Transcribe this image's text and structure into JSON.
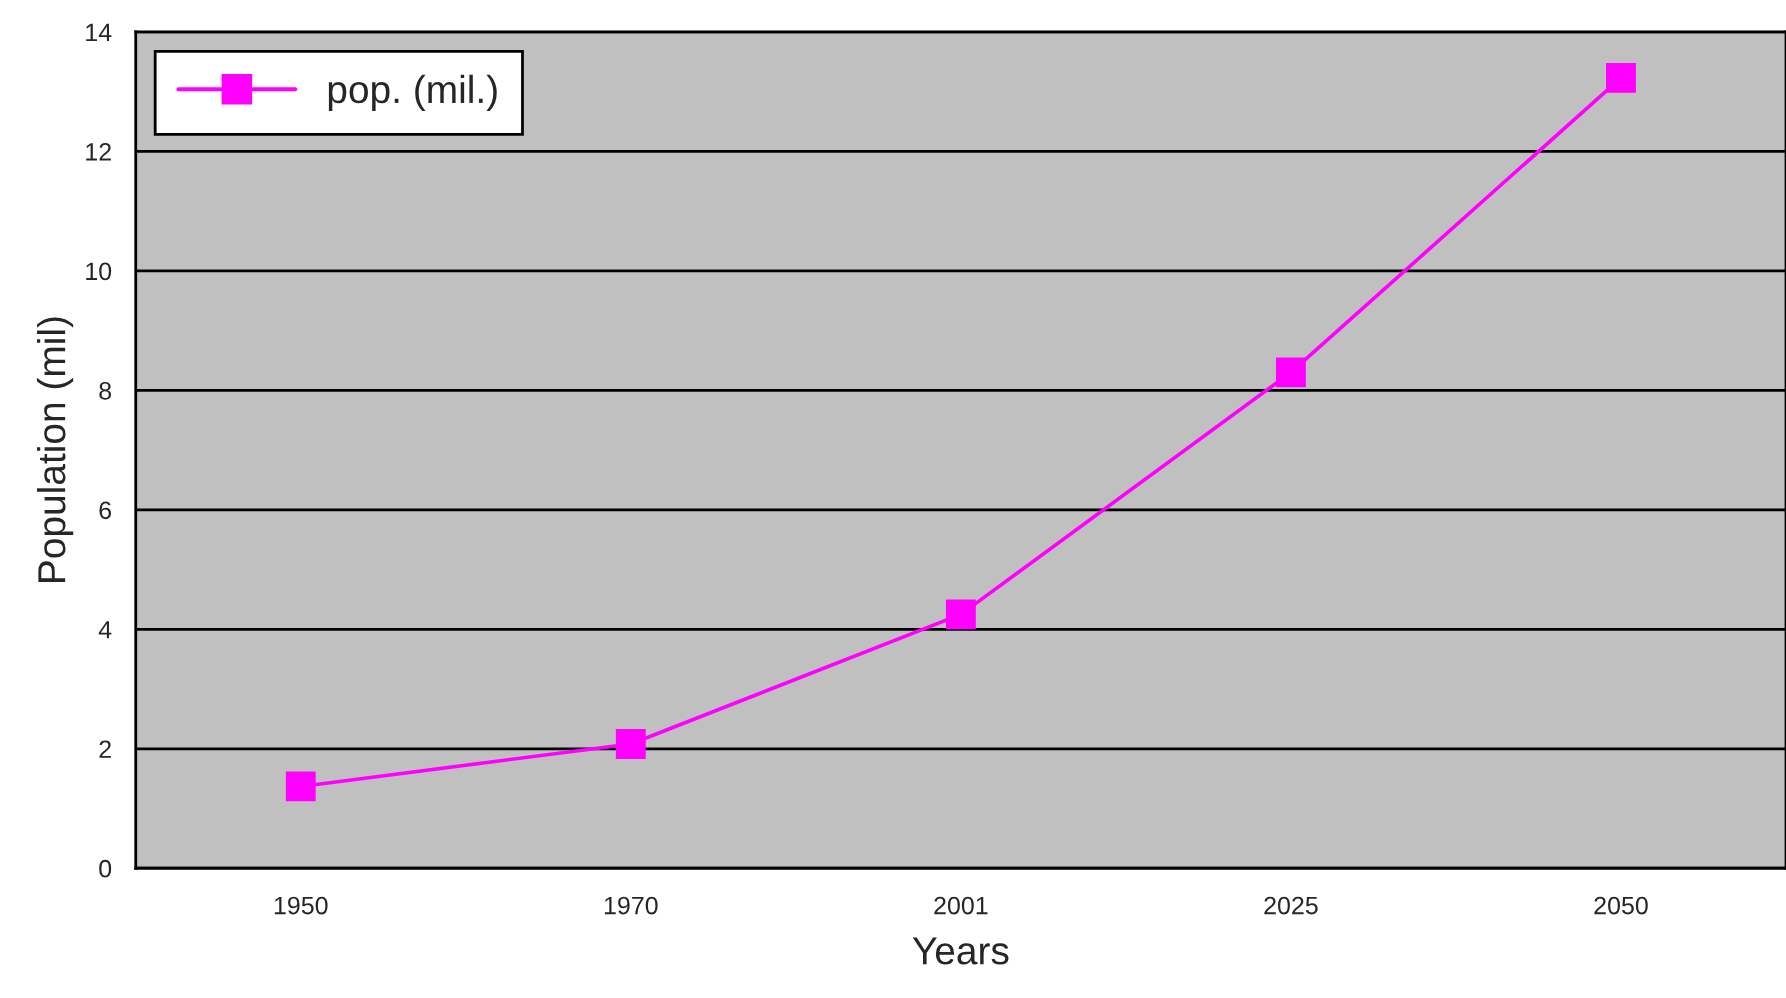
{
  "chart_data": {
    "type": "line",
    "xlabel": "Years",
    "ylabel": "Population (mil)",
    "categories": [
      "1950",
      "1970",
      "2001",
      "2025",
      "2050"
    ],
    "series": [
      {
        "name": "pop. (mil.)",
        "color": "#ff00ff",
        "values": [
          1.37,
          2.08,
          4.25,
          8.3,
          13.23
        ]
      }
    ],
    "ylim": [
      0,
      14
    ],
    "yticks": [
      0,
      2,
      4,
      6,
      8,
      10,
      12,
      14
    ],
    "grid": "y",
    "legend": "top left",
    "marker": "square",
    "line_style": "solid"
  }
}
